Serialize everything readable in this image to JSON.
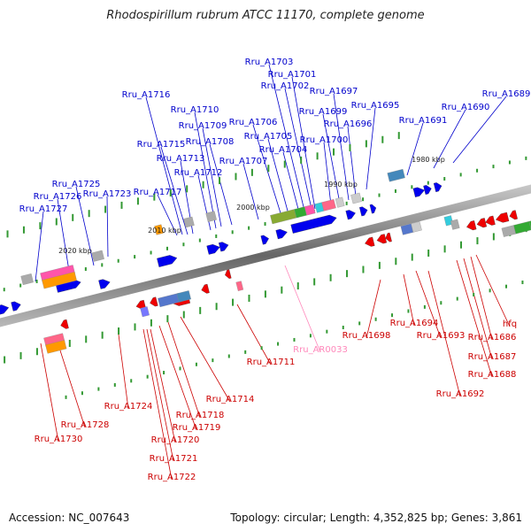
{
  "title": "Rhodospirillum rubrum ATCC 11170, complete genome",
  "footer": {
    "accession": "Accession: NC_007643",
    "summary": "Topology: circular; Length: 4,352,825 bp; Genes: 3,861"
  },
  "colors": {
    "forward_label": "#0000cc",
    "reverse_label": "#cc0000",
    "rna_label": "#ff88bb",
    "backbone": "#888888",
    "forward_arrow": "#0000ee",
    "reverse_arrow": "#ee0000",
    "tick": "#339933"
  },
  "kbp_marks": [
    "2020 kbp",
    "2010 kbp",
    "2000 kbp",
    "1990 kbp",
    "1980 kbp"
  ],
  "forward_genes": [
    "Rru_A1727",
    "Rru_A1726",
    "Rru_A1725",
    "Rru_A1723",
    "Rru_A1717",
    "Rru_A1716",
    "Rru_A1715",
    "Rru_A1713",
    "Rru_A1712",
    "Rru_A1710",
    "Rru_A1709",
    "Rru_A1708",
    "Rru_A1707",
    "Rru_A1706",
    "Rru_A1705",
    "Rru_A1704",
    "Rru_A1703",
    "Rru_A1702",
    "Rru_A1701",
    "Rru_A1700",
    "Rru_A1699",
    "Rru_A1697",
    "Rru_A1696",
    "Rru_A1695",
    "Rru_A1691",
    "Rru_A1690",
    "Rru_A1689"
  ],
  "reverse_genes": [
    "Rru_A1730",
    "Rru_A1728",
    "Rru_A1724",
    "Rru_A1722",
    "Rru_A1721",
    "Rru_A1720",
    "Rru_A1719",
    "Rru_A1718",
    "Rru_A1714",
    "Rru_A1711",
    "Rru_A1698",
    "Rru_A1694",
    "Rru_A1693",
    "Rru_A1692",
    "Rru_A1688",
    "Rru_A1687",
    "Rru_A1686",
    "hfq"
  ],
  "rna_genes": [
    "Rru_AR0033"
  ]
}
